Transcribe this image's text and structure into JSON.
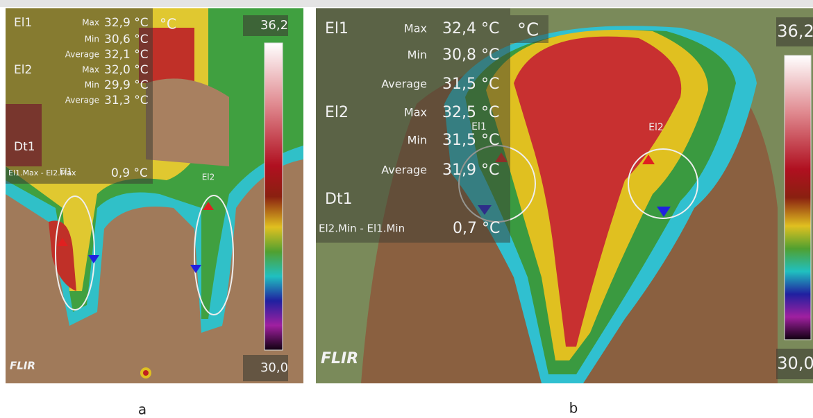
{
  "panels": [
    {
      "label": "a",
      "unit": "°C",
      "scale_max": "36,2",
      "scale_min": "30,0",
      "logo": "FLIR",
      "ellipse_labels": [
        "El1",
        "El2"
      ],
      "measurements": [
        {
          "name": "El1",
          "rows": [
            [
              "Max",
              "32,9 °C"
            ],
            [
              "Min",
              "30,6 °C"
            ],
            [
              "Average",
              "32,1 °C"
            ]
          ]
        },
        {
          "name": "El2",
          "rows": [
            [
              "Max",
              "32,0 °C"
            ],
            [
              "Min",
              "29,9 °C"
            ],
            [
              "Average",
              "31,3 °C"
            ]
          ]
        }
      ],
      "delta": {
        "name": "Dt1",
        "label": "El1.Max - El2.Max",
        "value": "0,9 °C"
      }
    },
    {
      "label": "b",
      "unit": "°C",
      "scale_max": "36,2",
      "scale_min": "30,0",
      "logo": "FLIR",
      "ellipse_labels": [
        "El1",
        "El2"
      ],
      "measurements": [
        {
          "name": "El1",
          "rows": [
            [
              "Max",
              "32,4 °C"
            ],
            [
              "Min",
              "30,8 °C"
            ],
            [
              "Average",
              "31,5 °C"
            ]
          ]
        },
        {
          "name": "El2",
          "rows": [
            [
              "Max",
              "32,5 °C"
            ],
            [
              "Min",
              "31,5 °C"
            ],
            [
              "Average",
              "31,9 °C"
            ]
          ]
        }
      ],
      "delta": {
        "name": "Dt1",
        "label": "El2.Min - El1.Min",
        "value": "0,7 °C"
      }
    }
  ]
}
